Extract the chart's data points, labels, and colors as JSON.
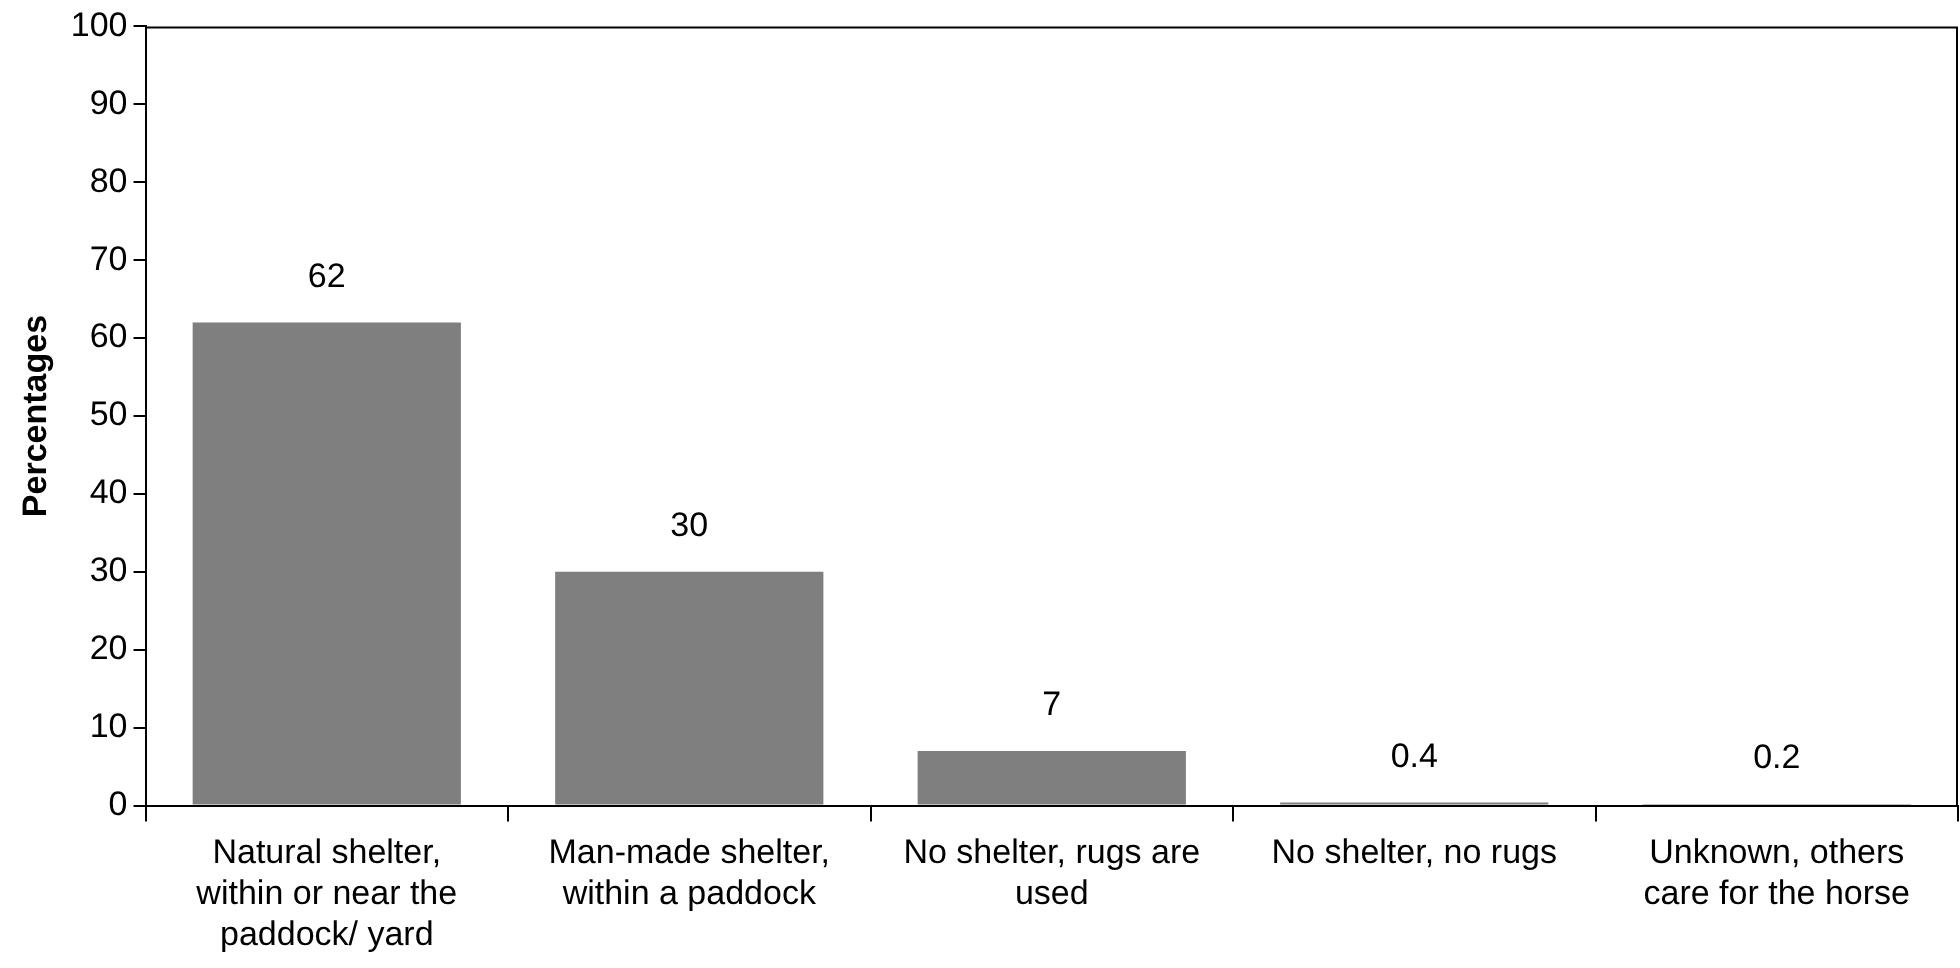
{
  "chart_data": {
    "type": "bar",
    "ylabel": "Percentages",
    "categories": [
      "Natural shelter, within or near the paddock/ yard",
      "Man-made shelter, within a paddock",
      "No shelter, rugs are used",
      "No shelter, no rugs",
      "Unknown, others care for the horse"
    ],
    "values": [
      62,
      30,
      7,
      0.4,
      0.2
    ],
    "color": "#7f7f7f",
    "data_labels": true,
    "ylim": [
      0,
      100
    ],
    "yticks": [
      0,
      10,
      20,
      30,
      40,
      50,
      60,
      70,
      80,
      90,
      100
    ],
    "grid": false,
    "legend": false
  }
}
